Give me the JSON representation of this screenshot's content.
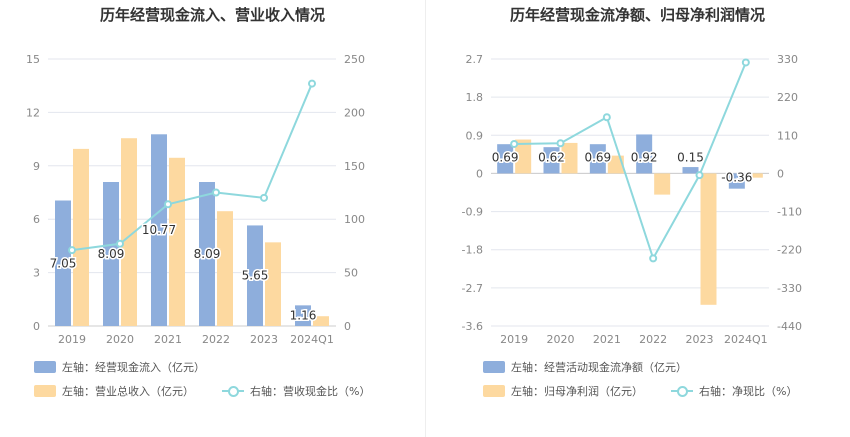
{
  "colors": {
    "bar_primary": "#8eaedc",
    "bar_secondary": "#fdd9a0",
    "line": "#8ed8dd",
    "grid": "#e3e6ee",
    "tick": "#888888"
  },
  "chart_data": [
    {
      "type": "bar",
      "title": "历年经营现金流入、营业收入情况",
      "categories": [
        "2019",
        "2020",
        "2021",
        "2022",
        "2023",
        "2024Q1"
      ],
      "y_left": {
        "ticks": [
          0,
          3,
          6,
          9,
          12,
          15
        ],
        "ylim": [
          0,
          15
        ]
      },
      "y_right": {
        "ticks": [
          0,
          50,
          100,
          150,
          200,
          250
        ],
        "ylim": [
          0,
          250
        ]
      },
      "series": [
        {
          "name": "左轴：经营现金流入（亿元）",
          "kind": "bar",
          "axis": "left",
          "values": [
            7.05,
            8.09,
            10.77,
            8.09,
            5.65,
            1.16
          ],
          "labels": [
            "7.05",
            "8.09",
            "10.77",
            "8.09",
            "5.65",
            "1.16"
          ]
        },
        {
          "name": "左轴：营业总收入（亿元）",
          "kind": "bar",
          "axis": "left",
          "values": [
            9.95,
            10.55,
            9.45,
            6.45,
            4.7,
            0.55
          ]
        },
        {
          "name": "右轴：营收现金比（%）",
          "kind": "line",
          "axis": "right",
          "values": [
            71,
            77,
            114,
            125,
            120,
            227
          ]
        }
      ]
    },
    {
      "type": "bar",
      "title": "历年经营现金流净额、归母净利润情况",
      "categories": [
        "2019",
        "2020",
        "2021",
        "2022",
        "2023",
        "2024Q1"
      ],
      "y_left": {
        "ticks": [
          -3.6,
          -2.7,
          -1.8,
          -0.9,
          0,
          0.9,
          1.8,
          2.7
        ],
        "ylim": [
          -3.6,
          2.7
        ]
      },
      "y_right": {
        "ticks": [
          -440,
          -330,
          -220,
          -110,
          0,
          110,
          220,
          330
        ],
        "ylim": [
          -440,
          330
        ]
      },
      "series": [
        {
          "name": "左轴：经营活动现金流净额（亿元）",
          "kind": "bar",
          "axis": "left",
          "values": [
            0.69,
            0.62,
            0.69,
            0.92,
            0.15,
            -0.36
          ],
          "labels": [
            "0.69",
            "0.62",
            "0.69",
            "0.92",
            "0.15",
            "-0.36"
          ]
        },
        {
          "name": "左轴：归母净利润（亿元）",
          "kind": "bar",
          "axis": "left",
          "values": [
            0.8,
            0.72,
            0.42,
            -0.5,
            -3.1,
            -0.1
          ]
        },
        {
          "name": "右轴：净现比（%）",
          "kind": "line",
          "axis": "right",
          "values": [
            85,
            87,
            162,
            -245,
            -5,
            320
          ]
        }
      ]
    }
  ]
}
